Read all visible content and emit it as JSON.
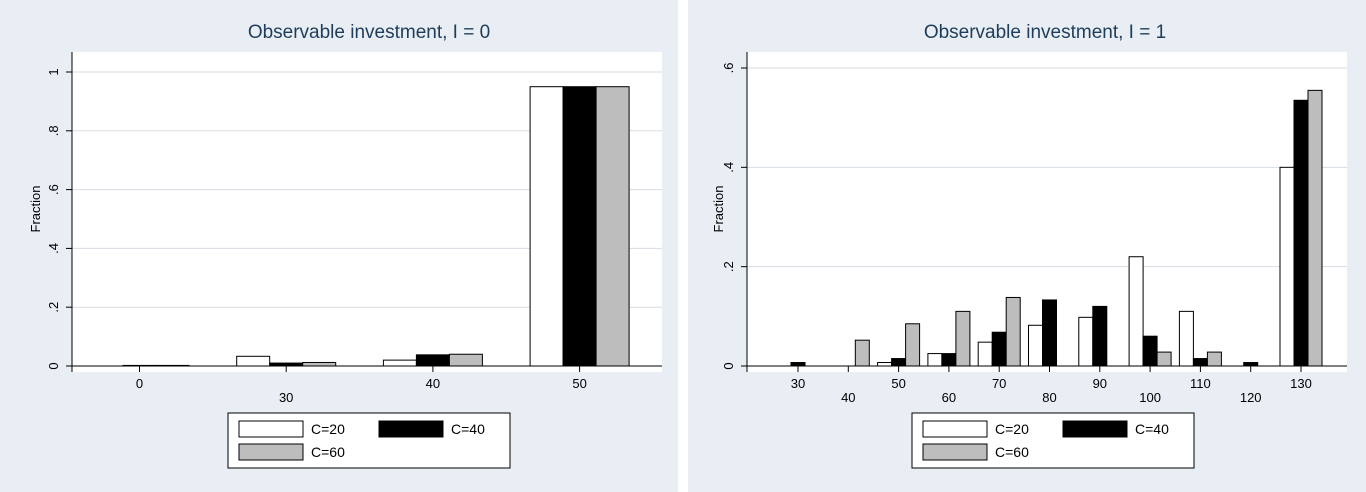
{
  "colors": {
    "outer_bg": "#e8eef3",
    "plot_bg": "#ffffff",
    "title": "#1f3d5a",
    "grid": "#d6dde3",
    "c20": "#ffffff",
    "c40": "#000000",
    "c60": "#bdbdbd"
  },
  "legend": {
    "c20": "C=20",
    "c40": "C=40",
    "c60": "C=60"
  },
  "chart_data": [
    {
      "type": "bar",
      "title": "Observable investment, I = 0",
      "ylabel": "Fraction",
      "xlabel": "",
      "ylim": [
        0,
        1.0
      ],
      "yticks": [
        0,
        0.2,
        0.4,
        0.6,
        0.8,
        1
      ],
      "ytick_labels": [
        "0",
        ".2",
        ".4",
        ".6",
        ".8",
        "1"
      ],
      "grid": true,
      "legend_position": "bottom-center",
      "categories": [
        "0",
        "30",
        "40",
        "50"
      ],
      "label_rows": [
        "top",
        "bottom",
        "top",
        "top"
      ],
      "series": [
        {
          "name": "C=20",
          "values": [
            0,
            0.033,
            0.02,
            0.95
          ]
        },
        {
          "name": "C=40",
          "values": [
            0.002,
            0.01,
            0.038,
            0.95
          ]
        },
        {
          "name": "C=60",
          "values": [
            0.002,
            0.012,
            0.04,
            0.95
          ]
        }
      ]
    },
    {
      "type": "bar",
      "title": "Observable investment, I = 1",
      "ylabel": "Fraction",
      "xlabel": "",
      "ylim": [
        0,
        0.6
      ],
      "yticks": [
        0,
        0.2,
        0.4,
        0.6
      ],
      "ytick_labels": [
        "0",
        ".2",
        ".4",
        ".6"
      ],
      "grid": true,
      "legend_position": "bottom-center",
      "categories": [
        "30",
        "40",
        "50",
        "60",
        "70",
        "80",
        "90",
        "100",
        "110",
        "120",
        "130"
      ],
      "label_rows": [
        "top",
        "bottom",
        "top",
        "bottom",
        "top",
        "bottom",
        "top",
        "bottom",
        "top",
        "bottom",
        "top"
      ],
      "series": [
        {
          "name": "C=20",
          "values": [
            0,
            0,
            0.007,
            0.025,
            0.048,
            0.082,
            0.098,
            0.22,
            0.11,
            0,
            0.4
          ]
        },
        {
          "name": "C=40",
          "values": [
            0.007,
            0,
            0.015,
            0.025,
            0.068,
            0.133,
            0.12,
            0.06,
            0.015,
            0.007,
            0.535
          ]
        },
        {
          "name": "C=60",
          "values": [
            0,
            0.052,
            0.085,
            0.11,
            0.138,
            0,
            0,
            0.028,
            0.028,
            0,
            0.555
          ]
        }
      ]
    }
  ]
}
